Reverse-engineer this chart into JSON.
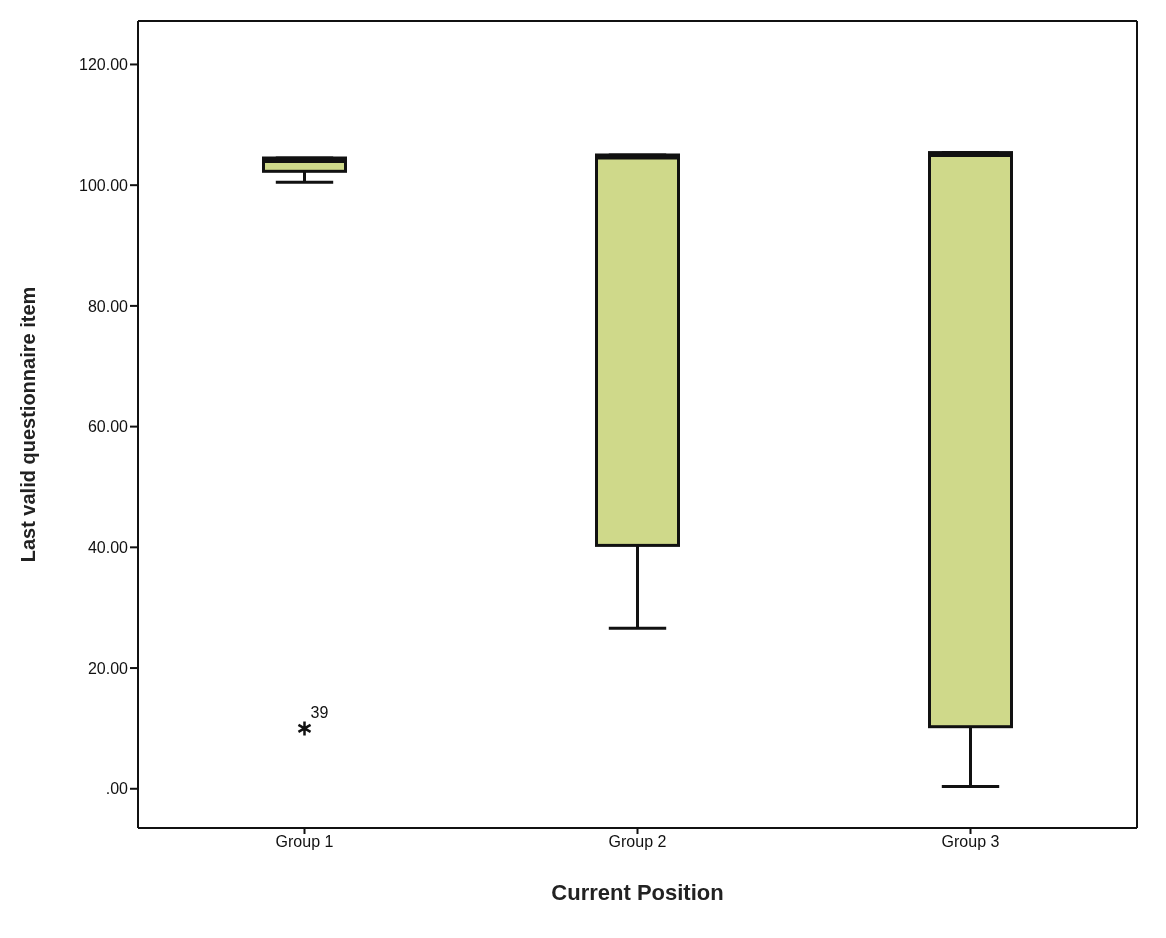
{
  "chart_data": {
    "type": "box",
    "xlabel": "Current Position",
    "ylabel": "Last valid questionnaire item",
    "categories": [
      "Group 1",
      "Group 2",
      "Group 3"
    ],
    "color": "#cfd98a",
    "boxes": [
      {
        "low": 100.5,
        "q1": 102.3,
        "median": 104,
        "q3": 104.5,
        "high": 104.5,
        "outliers": [
          10
        ]
      },
      {
        "low": 26.7,
        "q1": 40.4,
        "median": 104.6,
        "q3": 105,
        "high": 105
      },
      {
        "low": 0.5,
        "q1": 10.4,
        "median": 105,
        "q3": 105.4,
        "high": 105.4
      }
    ],
    "ylim": [
      -6.5,
      127.2
    ],
    "yticks": [
      {
        "value": 0,
        "label": ".00"
      },
      {
        "value": 20,
        "label": "20.00"
      },
      {
        "value": 40,
        "label": "40.00"
      },
      {
        "value": 60,
        "label": "60.00"
      },
      {
        "value": 80,
        "label": "80.00"
      },
      {
        "value": 100,
        "label": "100.00"
      },
      {
        "value": 120,
        "label": "120.00"
      }
    ],
    "annotations": [
      "39"
    ],
    "grid": false,
    "legend": false
  }
}
